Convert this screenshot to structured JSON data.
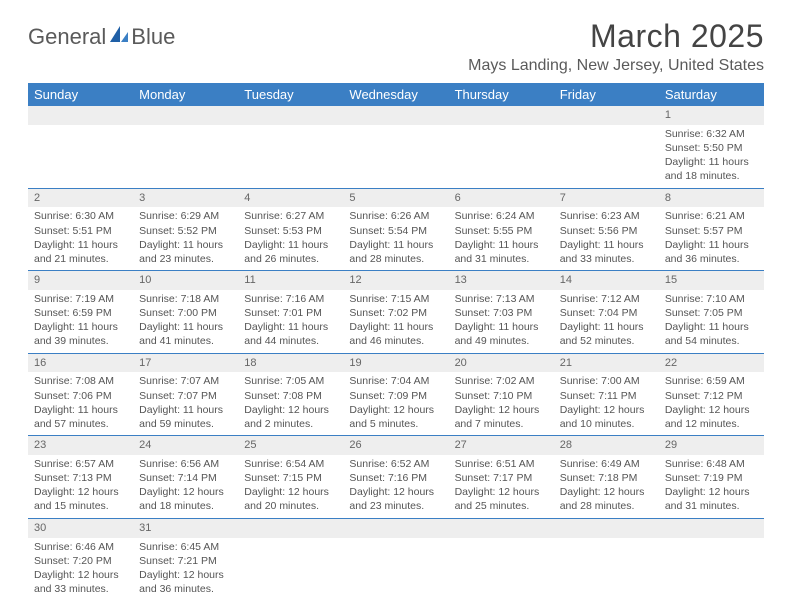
{
  "logo": {
    "text1": "General",
    "text2": "Blue"
  },
  "title": "March 2025",
  "location": "Mays Landing, New Jersey, United States",
  "colors": {
    "header_bg": "#3b7fc4",
    "header_fg": "#ffffff",
    "rule": "#3b7fc4",
    "daynum_bg": "#eeeeee"
  },
  "dayNames": [
    "Sunday",
    "Monday",
    "Tuesday",
    "Wednesday",
    "Thursday",
    "Friday",
    "Saturday"
  ],
  "weeks": [
    [
      null,
      null,
      null,
      null,
      null,
      null,
      {
        "n": "1",
        "sr": "6:32 AM",
        "ss": "5:50 PM",
        "dl": "11 hours and 18 minutes."
      }
    ],
    [
      {
        "n": "2",
        "sr": "6:30 AM",
        "ss": "5:51 PM",
        "dl": "11 hours and 21 minutes."
      },
      {
        "n": "3",
        "sr": "6:29 AM",
        "ss": "5:52 PM",
        "dl": "11 hours and 23 minutes."
      },
      {
        "n": "4",
        "sr": "6:27 AM",
        "ss": "5:53 PM",
        "dl": "11 hours and 26 minutes."
      },
      {
        "n": "5",
        "sr": "6:26 AM",
        "ss": "5:54 PM",
        "dl": "11 hours and 28 minutes."
      },
      {
        "n": "6",
        "sr": "6:24 AM",
        "ss": "5:55 PM",
        "dl": "11 hours and 31 minutes."
      },
      {
        "n": "7",
        "sr": "6:23 AM",
        "ss": "5:56 PM",
        "dl": "11 hours and 33 minutes."
      },
      {
        "n": "8",
        "sr": "6:21 AM",
        "ss": "5:57 PM",
        "dl": "11 hours and 36 minutes."
      }
    ],
    [
      {
        "n": "9",
        "sr": "7:19 AM",
        "ss": "6:59 PM",
        "dl": "11 hours and 39 minutes."
      },
      {
        "n": "10",
        "sr": "7:18 AM",
        "ss": "7:00 PM",
        "dl": "11 hours and 41 minutes."
      },
      {
        "n": "11",
        "sr": "7:16 AM",
        "ss": "7:01 PM",
        "dl": "11 hours and 44 minutes."
      },
      {
        "n": "12",
        "sr": "7:15 AM",
        "ss": "7:02 PM",
        "dl": "11 hours and 46 minutes."
      },
      {
        "n": "13",
        "sr": "7:13 AM",
        "ss": "7:03 PM",
        "dl": "11 hours and 49 minutes."
      },
      {
        "n": "14",
        "sr": "7:12 AM",
        "ss": "7:04 PM",
        "dl": "11 hours and 52 minutes."
      },
      {
        "n": "15",
        "sr": "7:10 AM",
        "ss": "7:05 PM",
        "dl": "11 hours and 54 minutes."
      }
    ],
    [
      {
        "n": "16",
        "sr": "7:08 AM",
        "ss": "7:06 PM",
        "dl": "11 hours and 57 minutes."
      },
      {
        "n": "17",
        "sr": "7:07 AM",
        "ss": "7:07 PM",
        "dl": "11 hours and 59 minutes."
      },
      {
        "n": "18",
        "sr": "7:05 AM",
        "ss": "7:08 PM",
        "dl": "12 hours and 2 minutes."
      },
      {
        "n": "19",
        "sr": "7:04 AM",
        "ss": "7:09 PM",
        "dl": "12 hours and 5 minutes."
      },
      {
        "n": "20",
        "sr": "7:02 AM",
        "ss": "7:10 PM",
        "dl": "12 hours and 7 minutes."
      },
      {
        "n": "21",
        "sr": "7:00 AM",
        "ss": "7:11 PM",
        "dl": "12 hours and 10 minutes."
      },
      {
        "n": "22",
        "sr": "6:59 AM",
        "ss": "7:12 PM",
        "dl": "12 hours and 12 minutes."
      }
    ],
    [
      {
        "n": "23",
        "sr": "6:57 AM",
        "ss": "7:13 PM",
        "dl": "12 hours and 15 minutes."
      },
      {
        "n": "24",
        "sr": "6:56 AM",
        "ss": "7:14 PM",
        "dl": "12 hours and 18 minutes."
      },
      {
        "n": "25",
        "sr": "6:54 AM",
        "ss": "7:15 PM",
        "dl": "12 hours and 20 minutes."
      },
      {
        "n": "26",
        "sr": "6:52 AM",
        "ss": "7:16 PM",
        "dl": "12 hours and 23 minutes."
      },
      {
        "n": "27",
        "sr": "6:51 AM",
        "ss": "7:17 PM",
        "dl": "12 hours and 25 minutes."
      },
      {
        "n": "28",
        "sr": "6:49 AM",
        "ss": "7:18 PM",
        "dl": "12 hours and 28 minutes."
      },
      {
        "n": "29",
        "sr": "6:48 AM",
        "ss": "7:19 PM",
        "dl": "12 hours and 31 minutes."
      }
    ],
    [
      {
        "n": "30",
        "sr": "6:46 AM",
        "ss": "7:20 PM",
        "dl": "12 hours and 33 minutes."
      },
      {
        "n": "31",
        "sr": "6:45 AM",
        "ss": "7:21 PM",
        "dl": "12 hours and 36 minutes."
      },
      null,
      null,
      null,
      null,
      null
    ]
  ],
  "labels": {
    "sunrise": "Sunrise: ",
    "sunset": "Sunset: ",
    "daylight": "Daylight: "
  }
}
